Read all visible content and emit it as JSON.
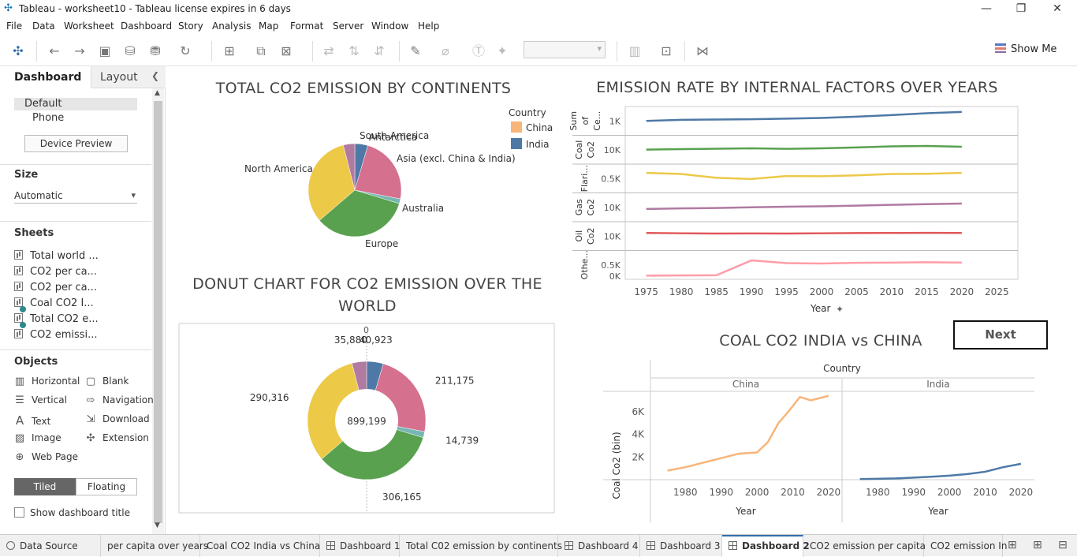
{
  "window": {
    "title": "Tableau - worksheet10 - Tableau license expires in 6 days"
  },
  "menu": [
    "File",
    "Data",
    "Worksheet",
    "Dashboard",
    "Story",
    "Analysis",
    "Map",
    "Format",
    "Server",
    "Window",
    "Help"
  ],
  "toolbar": {
    "show_me": "Show Me"
  },
  "left_panel": {
    "tabs": {
      "dashboard": "Dashboard",
      "layout": "Layout"
    },
    "devices": {
      "default": "Default",
      "phone": "Phone",
      "preview_button": "Device Preview"
    },
    "size": {
      "heading": "Size",
      "value": "Automatic"
    },
    "sheets": {
      "heading": "Sheets",
      "items": [
        "Total world ...",
        "CO2 per ca...",
        "CO2 per ca...",
        "Coal CO2 I...",
        "Total CO2 e...",
        "CO2 emissi..."
      ]
    },
    "objects": {
      "heading": "Objects",
      "items": [
        "Horizontal",
        "Blank",
        "Vertical",
        "Navigation",
        "Text",
        "Download",
        "Image",
        "Extension",
        "Web Page"
      ]
    },
    "tiled": "Tiled",
    "floating": "Floating",
    "show_title": "Show dashboard title"
  },
  "dashboard": {
    "pie_title": "TOTAL CO2 EMISSION BY CONTINENTS",
    "legend": {
      "title": "Country",
      "items": [
        {
          "label": "China",
          "color": "#f8b57a"
        },
        {
          "label": "India",
          "color": "#4e79a7"
        }
      ]
    },
    "pie_labels": [
      "South America",
      "Antarctica",
      "Asia (excl. China & India)",
      "North America",
      "Australia",
      "Europe"
    ],
    "donut_title_line1": "DONUT CHART FOR CO2 EMISSION OVER THE",
    "donut_title_line2": "WORLD",
    "donut_center": "899,199",
    "donut_axis_zero": "0",
    "line_title": "EMISSION RATE BY INTERNAL FACTORS OVER YEARS",
    "line_xlabel": "Year",
    "coal_title": "COAL CO2 INDIA vs CHINA",
    "coal_header": "Country",
    "coal_panels": [
      "China",
      "India"
    ],
    "coal_ylabel": "Coal Co2 (bin)",
    "coal_xlabel": "Year",
    "next_button": "Next"
  },
  "chart_data": [
    {
      "type": "pie",
      "title": "TOTAL CO2 EMISSION BY CONTINENTS",
      "categories": [
        "India",
        "Asia (excl. China & India)",
        "Australia",
        "Europe",
        "North America",
        "South America"
      ],
      "values": [
        40923,
        211175,
        14739,
        306165,
        290316,
        35880
      ],
      "colors": [
        "#4e79a7",
        "#d5708f",
        "#76b7b2",
        "#59a14f",
        "#edc948",
        "#b07aa1"
      ]
    },
    {
      "type": "pie",
      "title": "DONUT CHART FOR CO2 EMISSION OVER THE WORLD",
      "categories": [
        "India",
        "Asia (excl. China & India)",
        "Australia",
        "Europe",
        "North America",
        "South America"
      ],
      "values": [
        40923,
        211175,
        14739,
        306165,
        290316,
        35880
      ],
      "data_labels": [
        "40,923",
        "211,175",
        "14,739",
        "306,165",
        "290,316",
        "35,880"
      ],
      "total": 899199
    },
    {
      "type": "line",
      "title": "EMISSION RATE BY INTERNAL FACTORS OVER YEARS",
      "xlabel": "Year",
      "x_ticks": [
        1975,
        1980,
        1985,
        1990,
        1995,
        2000,
        2005,
        2010,
        2015,
        2020,
        2025
      ],
      "xlim": [
        1972,
        2028
      ],
      "x": [
        1975,
        1980,
        1985,
        1990,
        1995,
        2000,
        2005,
        2010,
        2015,
        2020
      ],
      "series": [
        {
          "name": "Sum of Ce...",
          "color": "#4e79a7",
          "ylim": [
            0,
            2000
          ],
          "tick_label": "1K",
          "tick_value": 1000,
          "values": [
            1000,
            1100,
            1120,
            1150,
            1200,
            1260,
            1380,
            1520,
            1680,
            1800
          ]
        },
        {
          "name": "Coal Co2",
          "color": "#59a14f",
          "ylim": [
            0,
            20000
          ],
          "tick_label": "10K",
          "tick_value": 10000,
          "values": [
            10100,
            10500,
            10900,
            11200,
            10800,
            11200,
            12000,
            13000,
            13300,
            12600
          ]
        },
        {
          "name": "Flari...",
          "color": "#edc948",
          "ylim": [
            0,
            1000
          ],
          "tick_label": "0.5K",
          "tick_value": 500,
          "values": [
            750,
            700,
            530,
            480,
            610,
            600,
            640,
            700,
            710,
            750
          ]
        },
        {
          "name": "Gas Co2",
          "color": "#b07aa1",
          "ylim": [
            0,
            20000
          ],
          "tick_label": "10K",
          "tick_value": 10000,
          "values": [
            8500,
            9000,
            9400,
            10000,
            10500,
            10900,
            11500,
            12200,
            12800,
            13300
          ]
        },
        {
          "name": "Oil Co2",
          "color": "#e15759",
          "ylim": [
            0,
            20000
          ],
          "tick_label": "10K",
          "tick_value": 10000,
          "values": [
            12800,
            12500,
            12300,
            12400,
            12300,
            12500,
            12700,
            12800,
            12900,
            12800
          ]
        },
        {
          "name": "Othe...",
          "color": "#ff9da7",
          "ylim": [
            0,
            1000
          ],
          "tick_label": "0.5K",
          "tick_value": 500,
          "tick2_label": "0K",
          "tick2_value": 0,
          "values": [
            20,
            30,
            40,
            700,
            580,
            560,
            590,
            600,
            620,
            600
          ]
        }
      ]
    },
    {
      "type": "line",
      "title": "COAL CO2 INDIA vs CHINA",
      "ylabel": "Coal Co2 (bin)",
      "xlabel": "Year",
      "y_ticks": [
        2000,
        4000,
        6000
      ],
      "y_tick_labels": [
        "2K",
        "4K",
        "6K"
      ],
      "ylim": [
        0,
        7800
      ],
      "x_ticks": [
        1980,
        1990,
        2000,
        2010,
        2020
      ],
      "xlim": [
        1972,
        2022
      ],
      "series": [
        {
          "name": "China",
          "color": "#f8b57a",
          "x": [
            1975,
            1980,
            1985,
            1990,
            1995,
            2000,
            2003,
            2006,
            2009,
            2012,
            2015,
            2020
          ],
          "values": [
            800,
            1100,
            1500,
            1900,
            2300,
            2400,
            3300,
            5000,
            6100,
            7300,
            7000,
            7400
          ]
        },
        {
          "name": "India",
          "color": "#4e79a7",
          "x": [
            1975,
            1980,
            1985,
            1990,
            1995,
            2000,
            2005,
            2010,
            2015,
            2020
          ],
          "values": [
            50,
            80,
            110,
            180,
            260,
            360,
            500,
            700,
            1100,
            1400
          ]
        }
      ]
    }
  ],
  "tabs": [
    "Data Source",
    "per capita over years",
    "Coal CO2 India vs China",
    "Dashboard 1",
    "Total C02 emission by continents",
    "Dashboard 4",
    "Dashboard 3",
    "Dashboard 2",
    "CO2 emission per capita",
    "CO2 emission In"
  ]
}
